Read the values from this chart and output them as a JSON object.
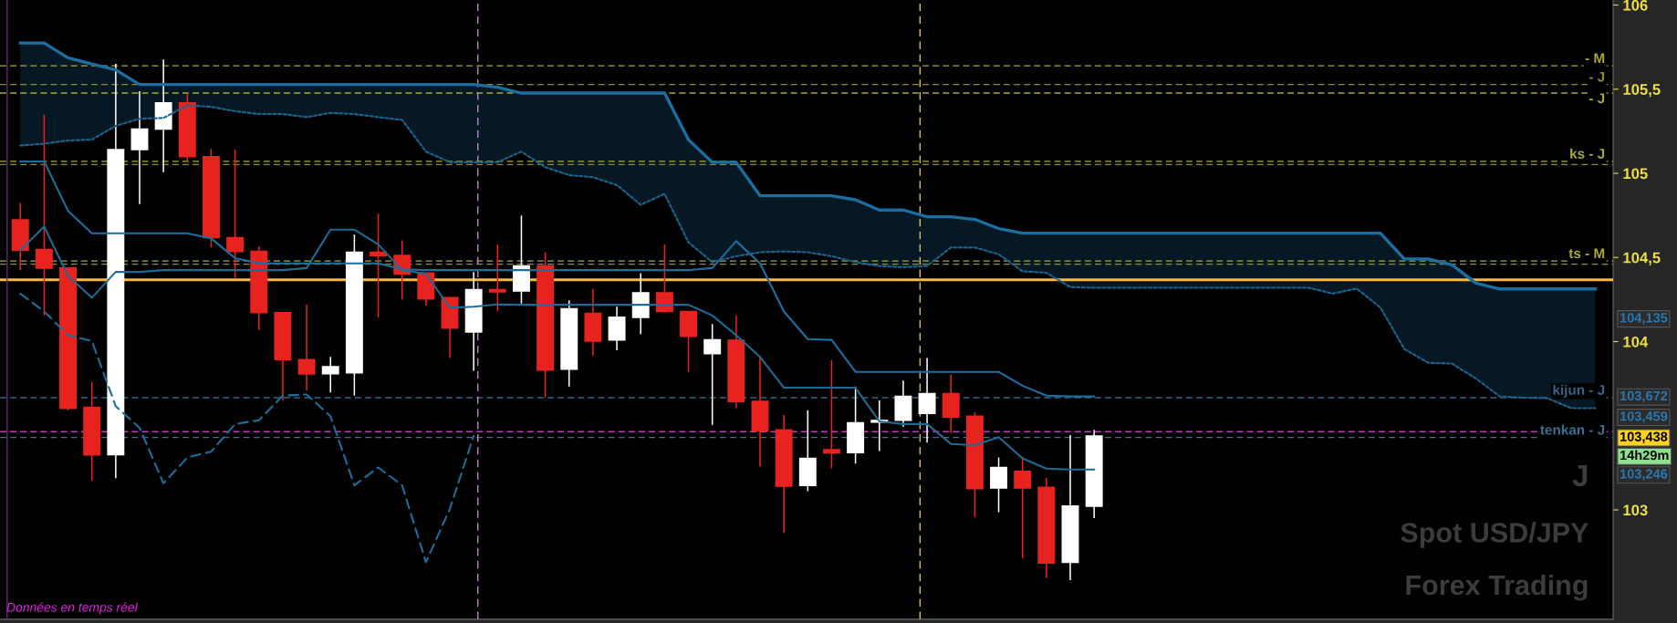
{
  "chart_data": {
    "type": "candlestick",
    "title": "Spot USD/JPY",
    "subtitle": "Forex Trading",
    "categories": [
      null,
      null,
      null,
      null,
      null,
      null,
      null,
      null,
      null,
      null,
      null,
      null,
      null,
      null,
      null,
      null,
      null,
      null,
      null,
      null,
      null,
      null,
      null,
      null,
      null,
      null,
      null,
      null,
      null,
      null,
      null,
      null,
      null,
      null,
      null,
      null,
      null,
      null,
      null,
      null,
      null,
      null,
      null,
      null,
      null,
      null,
      null,
      null,
      null,
      null,
      null,
      null,
      null,
      null,
      null,
      null,
      null,
      null,
      null,
      null,
      null,
      null,
      null,
      null,
      null,
      null,
      null
    ],
    "ohlc": [
      [
        104.723,
        104.824,
        104.425,
        104.543
      ],
      [
        104.547,
        105.348,
        104.155,
        104.437
      ],
      [
        104.437,
        104.44,
        103.592,
        103.604
      ],
      [
        103.609,
        103.761,
        103.174,
        103.327
      ],
      [
        103.329,
        105.65,
        103.188,
        105.141
      ],
      [
        105.141,
        105.488,
        104.817,
        105.263
      ],
      [
        105.263,
        105.676,
        105.007,
        105.418
      ],
      [
        105.418,
        105.47,
        105.071,
        105.099
      ],
      [
        105.099,
        105.146,
        104.559,
        104.618
      ],
      [
        104.618,
        105.141,
        104.378,
        104.536
      ],
      [
        104.536,
        104.566,
        104.069,
        104.172
      ],
      [
        104.172,
        104.172,
        103.651,
        103.893
      ],
      [
        103.893,
        104.219,
        103.709,
        103.808
      ],
      [
        103.81,
        103.909,
        103.698,
        103.85
      ],
      [
        103.815,
        104.636,
        103.679,
        104.531
      ],
      [
        104.531,
        104.761,
        104.144,
        104.512
      ],
      [
        104.512,
        104.601,
        104.249,
        104.402
      ],
      [
        104.407,
        104.407,
        104.214,
        104.254
      ],
      [
        104.261,
        104.261,
        103.902,
        104.08
      ],
      [
        104.057,
        104.414,
        103.827,
        104.308
      ],
      [
        104.308,
        104.578,
        104.179,
        104.296
      ],
      [
        104.301,
        104.749,
        104.226,
        104.449
      ],
      [
        104.449,
        104.531,
        103.667,
        103.831
      ],
      [
        103.836,
        104.245,
        103.733,
        104.195
      ],
      [
        104.167,
        104.313,
        103.916,
        104.003
      ],
      [
        104.01,
        104.207,
        103.949,
        104.144
      ],
      [
        104.144,
        104.407,
        104.045,
        104.289
      ],
      [
        104.289,
        104.578,
        104.172,
        104.179
      ],
      [
        104.179,
        104.179,
        103.82,
        104.031
      ],
      [
        103.928,
        104.104,
        103.505,
        104.01
      ],
      [
        104.008,
        104.155,
        103.604,
        103.644
      ],
      [
        103.644,
        103.914,
        103.257,
        103.47
      ],
      [
        103.475,
        103.564,
        102.865,
        103.141
      ],
      [
        103.146,
        103.592,
        103.111,
        103.306
      ],
      [
        103.357,
        103.89,
        103.247,
        103.339
      ],
      [
        103.341,
        103.733,
        103.275,
        103.517
      ],
      [
        103.522,
        103.651,
        103.35,
        103.531
      ],
      [
        103.533,
        103.768,
        103.494,
        103.674
      ],
      [
        103.573,
        103.902,
        103.4,
        103.691
      ],
      [
        103.691,
        103.803,
        103.456,
        103.552
      ],
      [
        103.557,
        103.58,
        102.958,
        103.127
      ],
      [
        103.13,
        103.311,
        102.986,
        103.252
      ],
      [
        103.228,
        103.315,
        102.712,
        103.13
      ],
      [
        103.134,
        103.188,
        102.595,
        102.684
      ],
      [
        102.689,
        103.444,
        102.583,
        103.022
      ],
      [
        103.022,
        103.475,
        102.951,
        103.438
      ],
      null,
      null,
      null,
      null,
      null,
      null,
      null,
      null,
      null,
      null,
      null,
      null,
      null,
      null,
      null,
      null,
      null,
      null,
      null,
      null,
      null
    ],
    "colors": [
      "#e8231f",
      "#e8231f",
      "#e8231f",
      "#e8231f",
      "#ffffff",
      "#ffffff",
      "#ffffff",
      "#e8231f",
      "#e8231f",
      "#e8231f",
      "#e8231f",
      "#e8231f",
      "#e8231f",
      "#ffffff",
      "#ffffff",
      "#e8231f",
      "#e8231f",
      "#e8231f",
      "#e8231f",
      "#ffffff",
      "#e8231f",
      "#ffffff",
      "#e8231f",
      "#ffffff",
      "#e8231f",
      "#ffffff",
      "#ffffff",
      "#e8231f",
      "#e8231f",
      "#ffffff",
      "#e8231f",
      "#e8231f",
      "#e8231f",
      "#ffffff",
      "#e8231f",
      "#ffffff",
      "#ffffff",
      "#ffffff",
      "#ffffff",
      "#e8231f",
      "#e8231f",
      "#ffffff",
      "#e8231f",
      "#e8231f",
      "#ffffff",
      "#ffffff",
      null,
      null,
      null,
      null,
      null,
      null,
      null,
      null,
      null,
      null,
      null,
      null,
      null,
      null,
      null,
      null,
      null,
      null,
      null,
      null,
      null
    ],
    "series": [
      {
        "type": "line",
        "color": "#1f6a93",
        "line_style": "solid",
        "values": [
          104.543,
          104.684,
          104.39,
          104.261,
          104.414,
          104.414,
          104.425,
          104.425,
          104.425,
          104.425,
          104.425,
          104.425,
          104.437,
          104.665,
          104.665,
          104.578,
          104.425,
          104.402,
          104.202,
          104.207,
          104.221,
          104.219,
          104.219,
          104.219,
          104.219,
          104.219,
          104.219,
          104.219,
          104.219,
          104.155,
          104.038,
          103.909,
          103.726,
          103.726,
          103.726,
          103.726,
          103.526,
          103.51,
          103.51,
          103.392,
          103.385,
          103.432,
          103.306,
          103.245,
          103.24,
          103.24,
          null,
          null,
          null,
          null,
          null,
          null,
          null,
          null,
          null,
          null,
          null,
          null,
          null,
          null,
          null,
          null,
          null,
          null,
          null,
          null,
          null
        ]
      },
      {
        "type": "line",
        "color": "#1b6fa0",
        "line_style": "solid",
        "values": [
          105.071,
          105.071,
          104.777,
          104.644,
          104.644,
          104.644,
          104.644,
          104.644,
          104.613,
          104.496,
          104.465,
          104.465,
          104.465,
          104.465,
          104.465,
          104.465,
          104.43,
          104.425,
          104.425,
          104.425,
          104.425,
          104.425,
          104.425,
          104.425,
          104.425,
          104.425,
          104.425,
          104.425,
          104.425,
          104.437,
          104.597,
          104.465,
          104.179,
          104.015,
          104.01,
          103.82,
          103.82,
          103.82,
          103.82,
          103.82,
          103.82,
          103.82,
          103.738,
          103.679,
          103.674,
          103.674,
          null,
          null,
          null,
          null,
          null,
          null,
          null,
          null,
          null,
          null,
          null,
          null,
          null,
          null,
          null,
          null,
          null,
          null,
          null,
          null,
          null
        ]
      },
      {
        "type": "line",
        "color": "#1a6590",
        "line_style": "dotted",
        "values": [
          105.165,
          105.176,
          105.195,
          105.2,
          105.282,
          105.324,
          105.329,
          105.404,
          105.395,
          105.369,
          105.352,
          105.352,
          105.334,
          105.359,
          105.352,
          105.334,
          105.317,
          105.129,
          105.066,
          105.066,
          105.066,
          105.129,
          105.036,
          104.989,
          104.977,
          104.93,
          104.813,
          104.878,
          104.59,
          104.472,
          104.507,
          104.531,
          104.536,
          104.531,
          104.507,
          104.472,
          104.449,
          104.442,
          104.449,
          104.559,
          104.559,
          104.519,
          104.418,
          104.409,
          104.324,
          104.32,
          104.32,
          104.32,
          104.32,
          104.32,
          104.32,
          104.32,
          104.32,
          104.32,
          104.32,
          104.285,
          104.315,
          104.202,
          103.956,
          103.874,
          103.869,
          103.78,
          103.674,
          103.667,
          103.663,
          103.604,
          103.604
        ]
      },
      {
        "type": "line",
        "color": "#1b6fa0",
        "line_style": "solid",
        "values": [
          105.775,
          105.775,
          105.686,
          105.65,
          105.615,
          105.528,
          105.528,
          105.528,
          105.528,
          105.528,
          105.528,
          105.528,
          105.528,
          105.528,
          105.528,
          105.528,
          105.528,
          105.528,
          105.528,
          105.528,
          105.512,
          105.477,
          105.477,
          105.477,
          105.477,
          105.477,
          105.477,
          105.477,
          105.2,
          105.066,
          105.066,
          104.867,
          104.867,
          104.867,
          104.867,
          104.843,
          104.782,
          104.782,
          104.742,
          104.742,
          104.726,
          104.672,
          104.644,
          104.644,
          104.644,
          104.644,
          104.644,
          104.644,
          104.644,
          104.644,
          104.644,
          104.644,
          104.644,
          104.644,
          104.644,
          104.644,
          104.644,
          104.644,
          104.491,
          104.491,
          104.456,
          104.348,
          104.313,
          104.313,
          104.313,
          104.313,
          104.313
        ],
        "lower": [
          105.165,
          105.176,
          105.195,
          105.2,
          105.282,
          105.324,
          105.329,
          105.404,
          105.395,
          105.369,
          105.352,
          105.352,
          105.334,
          105.359,
          105.352,
          105.334,
          105.317,
          105.129,
          105.066,
          105.066,
          105.066,
          105.129,
          105.036,
          104.989,
          104.977,
          104.93,
          104.813,
          104.878,
          104.59,
          104.472,
          104.507,
          104.531,
          104.536,
          104.531,
          104.507,
          104.472,
          104.449,
          104.442,
          104.449,
          104.559,
          104.559,
          104.519,
          104.418,
          104.409,
          104.324,
          104.32,
          104.32,
          104.32,
          104.32,
          104.32,
          104.32,
          104.32,
          104.32,
          104.32,
          104.32,
          104.285,
          104.315,
          104.202,
          103.956,
          103.874,
          103.869,
          103.78,
          103.674,
          103.667,
          103.663,
          103.604,
          103.604
        ],
        "upper": [
          105.775,
          105.775,
          105.686,
          105.65,
          105.615,
          105.528,
          105.528,
          105.528,
          105.528,
          105.528,
          105.528,
          105.528,
          105.528,
          105.528,
          105.528,
          105.528,
          105.528,
          105.528,
          105.528,
          105.528,
          105.512,
          105.477,
          105.477,
          105.477,
          105.477,
          105.477,
          105.477,
          105.477,
          105.2,
          105.066,
          105.066,
          104.867,
          104.867,
          104.867,
          104.867,
          104.843,
          104.782,
          104.782,
          104.742,
          104.742,
          104.726,
          104.672,
          104.644,
          104.644,
          104.644,
          104.644,
          104.644,
          104.644,
          104.644,
          104.644,
          104.644,
          104.644,
          104.644,
          104.644,
          104.644,
          104.644,
          104.644,
          104.644,
          104.491,
          104.491,
          104.456,
          104.348,
          104.313,
          104.313,
          104.313,
          104.313,
          104.313
        ]
      },
      {
        "type": "line",
        "color": "#1a6e9a",
        "line_style": "dashed",
        "values": [
          104.285,
          104.179,
          104.038,
          104.003,
          103.616,
          103.487,
          103.158,
          103.311,
          103.346,
          103.51,
          103.533,
          103.679,
          103.686,
          103.557,
          103.146,
          103.252,
          103.146,
          102.689,
          103.005,
          103.44,
          null,
          null,
          null,
          null,
          null,
          null,
          null,
          null,
          null,
          null,
          null,
          null,
          null,
          null,
          null,
          null,
          null,
          null,
          null,
          null,
          null,
          null,
          null,
          null,
          null,
          null,
          null,
          null,
          null,
          null,
          null,
          null,
          null,
          null,
          null,
          null,
          null,
          null,
          null,
          null,
          null,
          null,
          null,
          null,
          null,
          null,
          null
        ]
      }
    ],
    "ref_lines": [
      {
        "axis": "y",
        "value": 105.639,
        "label": "- M",
        "color": "#a8a83a",
        "line_style": "dashed"
      },
      {
        "axis": "y",
        "value": 105.528,
        "label": "- J",
        "color": "#8c8c30",
        "line_style": "dashed"
      },
      {
        "axis": "y",
        "value": 105.477,
        "label": "- J",
        "color": "#a8a83a",
        "line_style": "dashed"
      },
      {
        "axis": "y",
        "value": 105.071,
        "label": "ks - J",
        "color": "#a8a83a",
        "line_style": "dashed"
      },
      {
        "axis": "y",
        "value": 105.052,
        "label": null,
        "color": "#8c8c30",
        "line_style": "dashed"
      },
      {
        "axis": "y",
        "value": 104.479,
        "label": "ts - M",
        "color": "#a8a83a",
        "line_style": "dashed"
      },
      {
        "axis": "y",
        "value": 104.46,
        "label": null,
        "color": "#8c8c30",
        "line_style": "dashed"
      },
      {
        "axis": "y",
        "value": 104.367,
        "label": null,
        "color": "#ffb83c",
        "line_style": "solid"
      },
      {
        "axis": "y",
        "value": 103.667,
        "label": "kijun - J",
        "color": "#2f6687",
        "line_style": "dashed"
      },
      {
        "axis": "y",
        "value": 103.465,
        "label": null,
        "color": "#c03cc0",
        "line_style": "dashed"
      },
      {
        "axis": "y",
        "value": 103.43,
        "label": "tenkan - J",
        "color": "#3a6f8f",
        "line_style": "dashed"
      }
    ],
    "annotations": [
      "104,135",
      "103,672",
      "103,459",
      "103,438",
      "14h29m",
      "103,246",
      "J",
      "Données en temps réel"
    ],
    "ylim": [
      102.35,
      106.03
    ],
    "yticks": [
      {
        "value": 103,
        "label": "103"
      },
      {
        "value": 104,
        "label": "104"
      },
      {
        "value": 104.5,
        "label": "104,5"
      },
      {
        "value": 105,
        "label": "105"
      },
      {
        "value": 105.5,
        "label": "105,5"
      },
      {
        "value": 106,
        "label": "106"
      }
    ],
    "tick_labels": "y",
    "grid": false,
    "legend": false
  }
}
